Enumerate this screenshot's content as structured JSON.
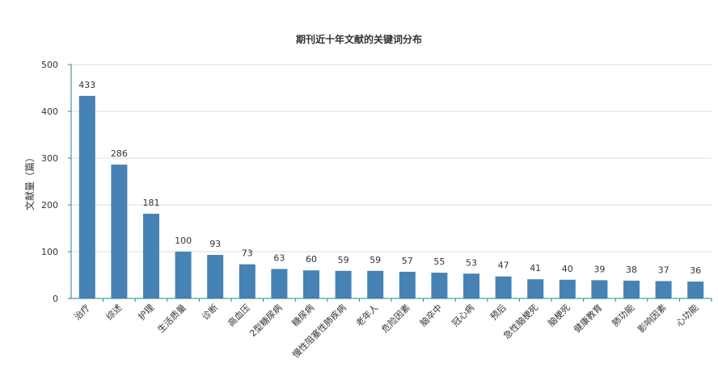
{
  "chart_data": {
    "type": "bar",
    "title": "期刊近十年文献的关键词分布",
    "xlabel": "",
    "ylabel": "文献量（篇）",
    "ylim": [
      0,
      500
    ],
    "yticks": [
      0,
      100,
      200,
      300,
      400,
      500
    ],
    "grid": true,
    "categories": [
      "治疗",
      "综述",
      "护理",
      "生活质量",
      "诊断",
      "高血压",
      "2型糖尿病",
      "糖尿病",
      "慢性阻塞性肺疾病",
      "老年人",
      "危险因素",
      "脑卒中",
      "冠心病",
      "预后",
      "急性脑梗死",
      "脑梗死",
      "健康教育",
      "肺功能",
      "影响因素",
      "心功能"
    ],
    "values": [
      433,
      286,
      181,
      100,
      93,
      73,
      63,
      60,
      59,
      59,
      57,
      55,
      53,
      47,
      41,
      40,
      39,
      38,
      37,
      36
    ],
    "bar_color": "#4682b4",
    "axis_color": "#1a8a8a",
    "grid_color": "#dddddd"
  }
}
